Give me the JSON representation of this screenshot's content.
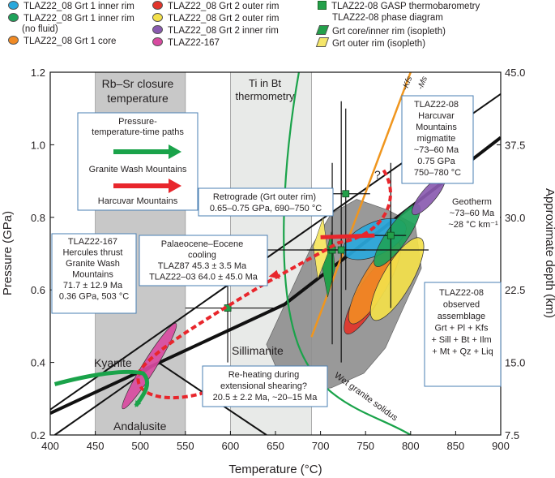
{
  "legend": {
    "items": [
      {
        "label": "TLAZ22_08 Grt 1 inner rim",
        "color": "#2aa8dc",
        "marker": "ellipse"
      },
      {
        "label": "TLAZ22_08 Grt 1 inner rim",
        "sublabel": "(no fluid)",
        "color": "#1ea35a",
        "marker": "ellipse"
      },
      {
        "label": "TLAZ22_08 Grt 1 core",
        "color": "#f08a24",
        "marker": "ellipse"
      },
      {
        "label": "TLAZ22_08 Grt 2 outer rim",
        "color": "#e2342a",
        "marker": "ellipse"
      },
      {
        "label": "TLAZ22_08 Grt 2 outer rim",
        "color": "#f3e04a",
        "marker": "ellipse"
      },
      {
        "label": "TLAZ22_08 Grt 2 inner rim",
        "color": "#8a5bb0",
        "marker": "ellipse"
      },
      {
        "label": "TLAZ22-167",
        "color": "#d84aa0",
        "marker": "ellipse"
      },
      {
        "label": "TLAZ22-08 GASP thermobarometry",
        "color": "#23a04a",
        "marker": "square"
      },
      {
        "label": "TLAZ22-08 phase diagram",
        "color": "",
        "marker": "none"
      },
      {
        "label": "Grt core/inner rim (isopleth)",
        "color": "#23a04a",
        "marker": "parallelogram"
      },
      {
        "label": "Grt outer rim (isopleth)",
        "color": "#f5e66a",
        "marker": "parallelogram"
      }
    ]
  },
  "chart_data": {
    "type": "scatter",
    "xlabel": "Temperature (°C)",
    "ylabel": "Pressure (GPa)",
    "y2label": "Approximate depth (km)",
    "xlim": [
      400,
      900
    ],
    "ylim": [
      0.2,
      1.2
    ],
    "xticks": [
      "400",
      "450",
      "500",
      "550",
      "600",
      "650",
      "700",
      "750",
      "800",
      "850",
      "900"
    ],
    "yticks": [
      "0.2",
      "0.4",
      "0.6",
      "0.8",
      "1.0",
      "1.2"
    ],
    "y2ticks": [
      "7.5",
      "15.0",
      "22.5",
      "30.0",
      "37.5",
      "45.0"
    ],
    "shaded_bands": [
      {
        "label": "Rb–Sr closure temperature",
        "x": [
          450,
          550
        ],
        "color": "#c8c8c8"
      },
      {
        "label": "Ti in Bt thermometry",
        "x": [
          600,
          690
        ],
        "color": "#e8eae8"
      }
    ],
    "phase_fields": [
      "Kyanite",
      "Sillimanite",
      "Andalusite"
    ],
    "curve_labels": {
      "solidus": "Wet granite solidus",
      "kfs": "-Kfs",
      "ms": "-Ms"
    },
    "gasp_points": [
      {
        "x": 597,
        "y": 0.55,
        "xerr": [
          550,
          650
        ],
        "yerr": [
          0.4,
          0.65
        ]
      },
      {
        "x": 713,
        "y": 0.71,
        "xerr": [
          685,
          750
        ],
        "yerr": [
          0.45,
          0.95
        ]
      },
      {
        "x": 728,
        "y": 0.865,
        "xerr": [
          705,
          755
        ],
        "yerr": [
          0.6,
          1.1
        ]
      },
      {
        "x": 778,
        "y": 0.75,
        "xerr": [
          760,
          795
        ],
        "yerr": [
          0.55,
          0.95
        ]
      },
      {
        "x": 723,
        "y": 0.71,
        "xerr": [
          640,
          820
        ],
        "yerr": [
          0.4,
          1.12
        ]
      }
    ],
    "annotations": {
      "pt_paths_box": {
        "title": "Pressure-temperature-time paths",
        "granite": "Granite Wash Mountains",
        "harcuvar": "Harcuvar Mountains"
      },
      "hercules": [
        "TLAZ22-167",
        "Hercules thrust",
        "Granite Wash",
        "Mountains",
        "71.7 ± 12.9 Ma",
        "0.36 GPa, 503 °C"
      ],
      "palaeocene": [
        "Palaeocene–Eocene",
        "cooling",
        "TLAZ87 45.3 ± 3.5 Ma",
        "TLAZ22–03 64.0 ± 45.0 Ma"
      ],
      "retrograde": [
        "Retrograde (Grt outer rim)",
        "0.65–0.75 GPa, 690–750 °C"
      ],
      "reheating": [
        "Re-heating during",
        "extensional shearing?",
        "20.5 ± 2.2 Ma, ~20–15 Ma"
      ],
      "migmatite": [
        "TLAZ22-08",
        "Harcuvar",
        "Mountains",
        "migmatite",
        "~73–60 Ma",
        "0.75 GPa",
        "750–780 °C"
      ],
      "geotherm": [
        "Geotherm",
        "~73–60 Ma",
        "~28 °C km⁻¹"
      ],
      "assemblage": [
        "TLAZ22-08",
        "observed",
        "assemblage",
        "Grt + Pl + Kfs",
        "+ Sill + Bt + Ilm",
        "+ Mt + Qz + Liq"
      ],
      "question": "?"
    },
    "path_colors": {
      "granite_wash": "#1aa34a",
      "harcuvar": "#e8262c",
      "solidus": "#1aa34a",
      "kfs_ms": "#f0961e"
    },
    "grid": false
  }
}
